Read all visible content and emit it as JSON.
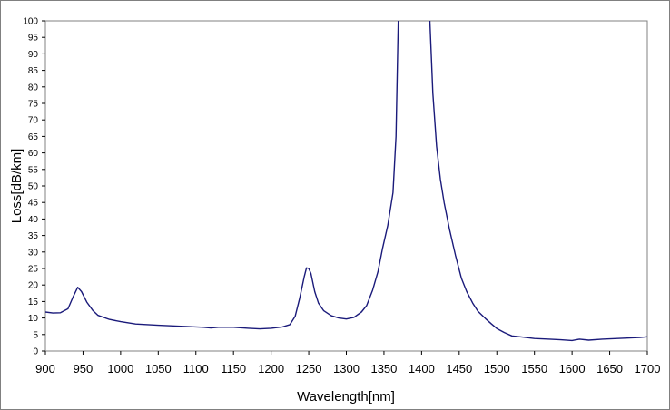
{
  "chart_data": {
    "type": "line",
    "title": "",
    "xlabel": "Wavelength[nm]",
    "ylabel": "Loss[dB/km]",
    "xlim": [
      900,
      1700
    ],
    "ylim": [
      0,
      100
    ],
    "x_ticks": [
      900,
      950,
      1000,
      1050,
      1100,
      1150,
      1200,
      1250,
      1300,
      1350,
      1400,
      1450,
      1500,
      1550,
      1600,
      1650,
      1700
    ],
    "y_ticks": [
      0,
      5,
      10,
      15,
      20,
      25,
      30,
      35,
      40,
      45,
      50,
      55,
      60,
      65,
      70,
      75,
      80,
      85,
      90,
      95,
      100
    ],
    "grid": false,
    "legend": "none",
    "series": [
      {
        "color": "#1a1a7a",
        "points": [
          [
            900,
            11.8
          ],
          [
            910,
            11.5
          ],
          [
            920,
            11.6
          ],
          [
            930,
            12.8
          ],
          [
            937,
            16.5
          ],
          [
            943,
            19.3
          ],
          [
            948,
            18.0
          ],
          [
            955,
            14.8
          ],
          [
            963,
            12.3
          ],
          [
            970,
            10.8
          ],
          [
            985,
            9.6
          ],
          [
            1000,
            8.9
          ],
          [
            1020,
            8.2
          ],
          [
            1050,
            7.8
          ],
          [
            1080,
            7.5
          ],
          [
            1110,
            7.2
          ],
          [
            1120,
            7.0
          ],
          [
            1130,
            7.2
          ],
          [
            1150,
            7.2
          ],
          [
            1170,
            6.9
          ],
          [
            1185,
            6.7
          ],
          [
            1200,
            6.9
          ],
          [
            1215,
            7.3
          ],
          [
            1225,
            8.0
          ],
          [
            1232,
            10.5
          ],
          [
            1238,
            16.0
          ],
          [
            1244,
            22.5
          ],
          [
            1247,
            25.2
          ],
          [
            1250,
            25.0
          ],
          [
            1253,
            23.5
          ],
          [
            1258,
            18.0
          ],
          [
            1263,
            14.5
          ],
          [
            1270,
            12.2
          ],
          [
            1280,
            10.7
          ],
          [
            1290,
            10.0
          ],
          [
            1300,
            9.7
          ],
          [
            1310,
            10.2
          ],
          [
            1320,
            11.8
          ],
          [
            1327,
            13.8
          ],
          [
            1335,
            18.5
          ],
          [
            1342,
            24.0
          ],
          [
            1348,
            31.0
          ],
          [
            1355,
            38.0
          ],
          [
            1362,
            48.0
          ],
          [
            1366,
            65.0
          ],
          [
            1369,
            100.0
          ],
          [
            1411,
            100.0
          ],
          [
            1415,
            78.0
          ],
          [
            1420,
            62.0
          ],
          [
            1425,
            52.0
          ],
          [
            1430,
            45.0
          ],
          [
            1437,
            37.0
          ],
          [
            1445,
            29.0
          ],
          [
            1453,
            22.0
          ],
          [
            1460,
            18.0
          ],
          [
            1468,
            14.5
          ],
          [
            1475,
            12.0
          ],
          [
            1485,
            9.8
          ],
          [
            1493,
            8.2
          ],
          [
            1500,
            6.8
          ],
          [
            1510,
            5.6
          ],
          [
            1520,
            4.6
          ],
          [
            1535,
            4.2
          ],
          [
            1550,
            3.8
          ],
          [
            1570,
            3.6
          ],
          [
            1585,
            3.4
          ],
          [
            1600,
            3.2
          ],
          [
            1610,
            3.6
          ],
          [
            1622,
            3.3
          ],
          [
            1640,
            3.6
          ],
          [
            1660,
            3.8
          ],
          [
            1680,
            4.0
          ],
          [
            1690,
            4.1
          ],
          [
            1700,
            4.3
          ]
        ]
      }
    ]
  }
}
